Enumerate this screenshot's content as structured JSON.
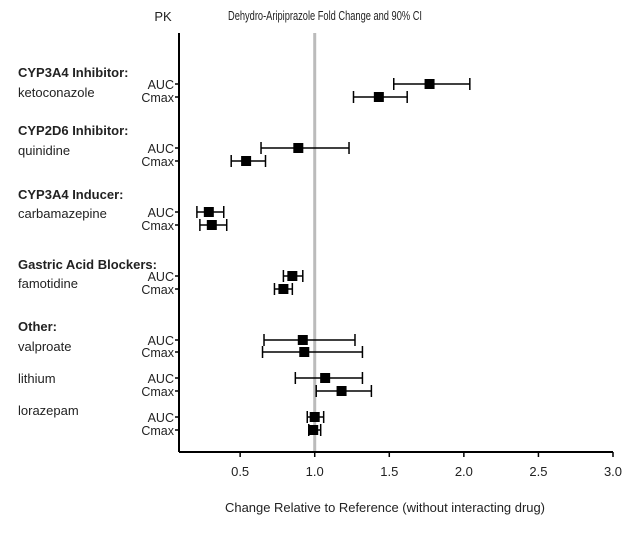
{
  "chart_data": {
    "type": "forest",
    "title": "Dehydro-Aripiprazole Fold Change and 90% CI",
    "column_header": "PK",
    "xlabel": "Change Relative to Reference (without interacting drug)",
    "xlim": [
      0.09,
      3.0
    ],
    "xticks": [
      "0.5",
      "1.0",
      "1.5",
      "2.0",
      "2.5",
      "3.0"
    ],
    "reference_line": 1.0,
    "reference_color": "#bbbbbb",
    "marker_color": "#000000",
    "groups": [
      {
        "label": "CYP3A4 Inhibitor:",
        "drugs": [
          {
            "name": "ketoconazole",
            "rows": [
              {
                "pk": "AUC",
                "estimate": 1.77,
                "lower": 1.53,
                "upper": 2.04
              },
              {
                "pk": "Cmax",
                "estimate": 1.43,
                "lower": 1.26,
                "upper": 1.62
              }
            ]
          }
        ]
      },
      {
        "label": "CYP2D6 Inhibitor:",
        "drugs": [
          {
            "name": "quinidine",
            "rows": [
              {
                "pk": "AUC",
                "estimate": 0.89,
                "lower": 0.64,
                "upper": 1.23
              },
              {
                "pk": "Cmax",
                "estimate": 0.54,
                "lower": 0.44,
                "upper": 0.67
              }
            ]
          }
        ]
      },
      {
        "label": "CYP3A4 Inducer:",
        "drugs": [
          {
            "name": "carbamazepine",
            "rows": [
              {
                "pk": "AUC",
                "estimate": 0.29,
                "lower": 0.21,
                "upper": 0.39
              },
              {
                "pk": "Cmax",
                "estimate": 0.31,
                "lower": 0.23,
                "upper": 0.41
              }
            ]
          }
        ]
      },
      {
        "label": "Gastric Acid Blockers:",
        "drugs": [
          {
            "name": "famotidine",
            "rows": [
              {
                "pk": "AUC",
                "estimate": 0.85,
                "lower": 0.79,
                "upper": 0.92
              },
              {
                "pk": "Cmax",
                "estimate": 0.79,
                "lower": 0.73,
                "upper": 0.85
              }
            ]
          }
        ]
      },
      {
        "label": "Other:",
        "drugs": [
          {
            "name": "valproate",
            "rows": [
              {
                "pk": "AUC",
                "estimate": 0.92,
                "lower": 0.66,
                "upper": 1.27
              },
              {
                "pk": "Cmax",
                "estimate": 0.93,
                "lower": 0.65,
                "upper": 1.32
              }
            ]
          },
          {
            "name": "lithium",
            "rows": [
              {
                "pk": "AUC",
                "estimate": 1.07,
                "lower": 0.87,
                "upper": 1.32
              },
              {
                "pk": "Cmax",
                "estimate": 1.18,
                "lower": 1.01,
                "upper": 1.38
              }
            ]
          },
          {
            "name": "lorazepam",
            "rows": [
              {
                "pk": "AUC",
                "estimate": 1.0,
                "lower": 0.95,
                "upper": 1.06
              },
              {
                "pk": "Cmax",
                "estimate": 0.99,
                "lower": 0.96,
                "upper": 1.04
              }
            ]
          }
        ]
      }
    ]
  }
}
